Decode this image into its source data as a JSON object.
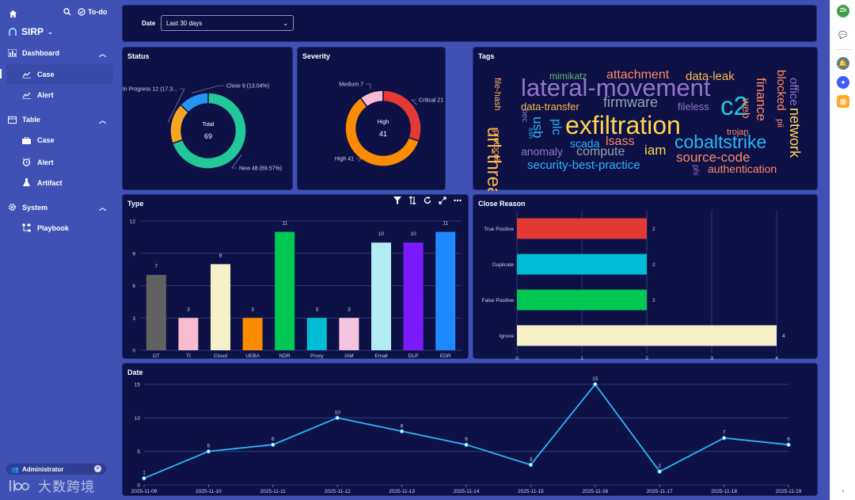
{
  "sidebar": {
    "todo_label": "To-do",
    "brand": "SIRP",
    "sections": [
      {
        "label": "Dashboard",
        "items": [
          "Case",
          "Alert"
        ]
      },
      {
        "label": "Table",
        "items": [
          "Case",
          "Alert",
          "Artifact"
        ]
      },
      {
        "label": "System",
        "items": [
          "Playbook"
        ]
      }
    ],
    "user": "Administrator",
    "logo_text": "大数跨境"
  },
  "filter": {
    "label": "Date",
    "value": "Last 30 days"
  },
  "status": {
    "title": "Status",
    "center_label": "Total",
    "center_value": "69",
    "slices": [
      {
        "name": "New",
        "value": 48,
        "label": "New  48 (69.57%)",
        "color": "#20c997"
      },
      {
        "name": "In Progress",
        "value": 12,
        "label": "In Progress  12 (17.3...",
        "color": "#f5a623"
      },
      {
        "name": "Close",
        "value": 9,
        "label": "Close  9 (13.04%)",
        "color": "#2196f3"
      }
    ]
  },
  "severity": {
    "title": "Severity",
    "center_label": "High",
    "center_value": "41",
    "slices": [
      {
        "name": "High",
        "value": 41,
        "label": "High  41",
        "color": "#fb8c00"
      },
      {
        "name": "Medium",
        "value": 7,
        "label": "Medium  7",
        "color": "#f8bbd0"
      },
      {
        "name": "Critical",
        "value": 21,
        "label": "Critical  21",
        "color": "#e53935"
      }
    ]
  },
  "tags": {
    "title": "Tags",
    "words": [
      {
        "text": "lateral-movement",
        "color": "#9575cd"
      },
      {
        "text": "exfiltration",
        "color": "#ffd54f"
      },
      {
        "text": "url-threat",
        "color": "#ffb74d"
      },
      {
        "text": "cobaltstrike",
        "color": "#29b6f6"
      },
      {
        "text": "c2",
        "color": "#26c6da"
      },
      {
        "text": "attachment",
        "color": "#ff8a65"
      },
      {
        "text": "data-leak",
        "color": "#ffb74d"
      },
      {
        "text": "firmware",
        "color": "#90a4ae"
      },
      {
        "text": "finance",
        "color": "#ff8a65"
      },
      {
        "text": "blocked",
        "color": "#ff8a65"
      },
      {
        "text": "network",
        "color": "#ffd54f"
      },
      {
        "text": "office",
        "color": "#9575cd"
      },
      {
        "text": "source-code",
        "color": "#ff8a65"
      },
      {
        "text": "security-best-practice",
        "color": "#29b6f6"
      },
      {
        "text": "authentication",
        "color": "#ff8a65"
      },
      {
        "text": "data-transfer",
        "color": "#ffb74d"
      },
      {
        "text": "mimikatz",
        "color": "#66bb6a"
      },
      {
        "text": "usb",
        "color": "#29b6f6"
      },
      {
        "text": "plc",
        "color": "#29b6f6"
      },
      {
        "text": "compute",
        "color": "#90a4ae"
      },
      {
        "text": "iam",
        "color": "#ffd54f"
      },
      {
        "text": "lsass",
        "color": "#ff8a65"
      },
      {
        "text": "scada",
        "color": "#29b6f6"
      },
      {
        "text": "anomaly",
        "color": "#9575cd"
      },
      {
        "text": "fileless",
        "color": "#9575cd"
      },
      {
        "text": "file-hash",
        "color": "#ffb74d"
      },
      {
        "text": "protocol",
        "color": "#ffb74d"
      },
      {
        "text": "trojan",
        "color": "#ff8a65"
      },
      {
        "text": "web",
        "color": "#ff8a65"
      },
      {
        "text": "pii",
        "color": "#ff8a65"
      },
      {
        "text": "bec",
        "color": "#9575cd"
      },
      {
        "text": "ssh",
        "color": "#29b6f6"
      },
      {
        "text": "phi",
        "color": "#9575cd"
      }
    ]
  },
  "type_panel": {
    "title": "Type"
  },
  "close_panel": {
    "title": "Close Reason"
  },
  "date_panel": {
    "title": "Date"
  },
  "colors": {
    "panel": "#0d1146",
    "grid": "#3a4480",
    "line": "#29b6f6"
  },
  "chart_data": [
    {
      "type": "bar",
      "title": "Type",
      "categories": [
        "OT",
        "TI",
        "Cloud",
        "UEBA",
        "NDR",
        "Proxy",
        "IAM",
        "Email",
        "DLP",
        "EDR"
      ],
      "values": [
        7,
        3,
        8,
        3,
        11,
        3,
        3,
        10,
        10,
        11
      ],
      "colors": [
        "#616161",
        "#f8bbd0",
        "#f5f0c8",
        "#fb8c00",
        "#00c853",
        "#00bcd4",
        "#f3c5df",
        "#b2ebf2",
        "#7c1aff",
        "#1e88ff"
      ],
      "ylim": [
        0,
        12
      ],
      "yticks": [
        0,
        3,
        6,
        9,
        12
      ]
    },
    {
      "type": "bar",
      "orientation": "horizontal",
      "title": "Close Reason",
      "categories": [
        "True Positive",
        "Duplicate",
        "False Positive",
        "Ignore"
      ],
      "values": [
        2,
        2,
        2,
        4
      ],
      "colors": [
        "#e53935",
        "#00bcd4",
        "#00c853",
        "#f5f0c8"
      ],
      "xlim": [
        0,
        4
      ],
      "xticks": [
        0,
        1,
        2,
        3,
        4
      ]
    },
    {
      "type": "line",
      "title": "Date",
      "x": [
        "2025-11-09",
        "2025-11-10",
        "2025-11-11",
        "2025-11-12",
        "2025-11-13",
        "2025-11-14",
        "2025-11-15",
        "2025-11-16",
        "2025-11-17",
        "2025-11-18",
        "2025-11-19"
      ],
      "values": [
        1,
        5,
        6,
        10,
        8,
        6,
        3,
        15,
        2,
        7,
        6
      ],
      "ylim": [
        0,
        15
      ],
      "yticks": [
        0,
        5,
        10,
        15
      ]
    }
  ]
}
